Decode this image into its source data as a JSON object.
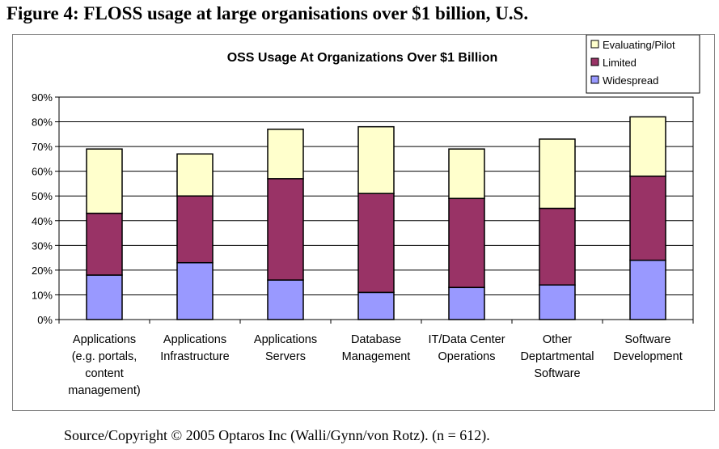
{
  "figure": {
    "title": "Figure 4: FLOSS usage at large organisations over $1 billion, U.S.",
    "source": "Source/Copyright © 2005 Optaros Inc (Walli/Gynn/von Rotz). (n = 612)."
  },
  "chart_data": {
    "type": "bar",
    "stacked": true,
    "title": "OSS Usage At Organizations Over $1 Billion",
    "xlabel": "",
    "ylabel": "",
    "ylim": [
      0,
      90
    ],
    "yticks": [
      "0%",
      "10%",
      "20%",
      "30%",
      "40%",
      "50%",
      "60%",
      "70%",
      "80%",
      "90%"
    ],
    "grid": true,
    "legend_position": "top-right",
    "categories": [
      [
        "Applications",
        "(e.g. portals,",
        "content",
        "management)"
      ],
      [
        "Applications",
        "Infrastructure"
      ],
      [
        "Applications",
        "Servers"
      ],
      [
        "Database",
        "Management"
      ],
      [
        "IT/Data Center",
        "Operations"
      ],
      [
        "Other",
        "Deptartmental",
        "Software"
      ],
      [
        "Software",
        "Development"
      ]
    ],
    "series": [
      {
        "name": "Widespread",
        "color": "#9999ff",
        "values": [
          18,
          23,
          16,
          11,
          13,
          14,
          24
        ]
      },
      {
        "name": "Limited",
        "color": "#993366",
        "values": [
          25,
          27,
          41,
          40,
          36,
          31,
          34
        ]
      },
      {
        "name": "Evaluating/Pilot",
        "color": "#ffffcc",
        "values": [
          26,
          17,
          20,
          27,
          20,
          28,
          24
        ]
      }
    ],
    "legend_order": [
      "Evaluating/Pilot",
      "Limited",
      "Widespread"
    ]
  }
}
